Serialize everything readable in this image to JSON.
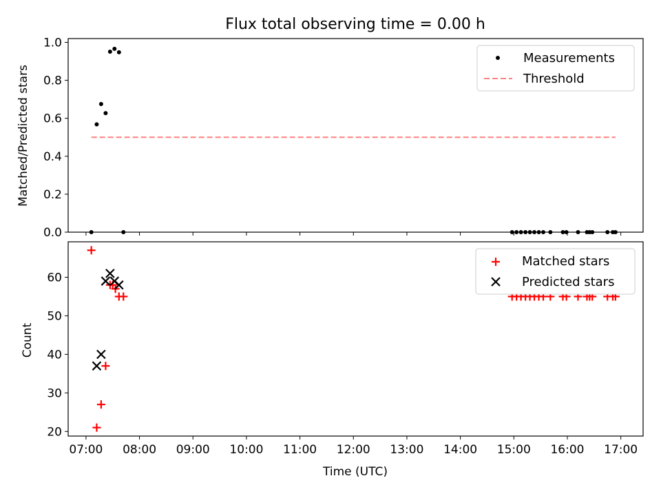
{
  "chart_data": [
    {
      "type": "scatter",
      "title": "Flux total observing time = 0.00 h",
      "xlabel": "",
      "ylabel": "Matched/Predicted stars",
      "xlim": [
        6.6667,
        17.4167
      ],
      "ylim": [
        0,
        1.02
      ],
      "yticks": [
        0.0,
        0.2,
        0.4,
        0.6,
        0.8,
        1.0
      ],
      "ytick_labels": [
        "0.0",
        "0.2",
        "0.4",
        "0.6",
        "0.8",
        "1.0"
      ],
      "legend_position": "top-right",
      "series": [
        {
          "name": "Measurements",
          "marker": "dot",
          "color": "#000000",
          "x": [
            7.1,
            7.2,
            7.283,
            7.367,
            7.45,
            7.533,
            7.617,
            7.7,
            14.967,
            15.05,
            15.133,
            15.217,
            15.3,
            15.383,
            15.467,
            15.55,
            15.683,
            15.917,
            15.983,
            16.2,
            16.367,
            16.417,
            16.467,
            16.75,
            16.85,
            16.9
          ],
          "y": [
            0.0,
            0.568,
            0.675,
            0.627,
            0.951,
            0.966,
            0.948,
            0.0,
            0,
            0,
            0,
            0,
            0,
            0,
            0,
            0,
            0,
            0,
            0,
            0,
            0,
            0,
            0,
            0,
            0,
            0
          ]
        },
        {
          "name": "Threshold",
          "style": "dashed",
          "color": "#ff8080",
          "x": [
            7.1,
            16.9
          ],
          "y": [
            0.5,
            0.5
          ]
        }
      ]
    },
    {
      "type": "scatter",
      "title": "",
      "xlabel": "Time (UTC)",
      "ylabel": "Count",
      "xlim": [
        6.6667,
        17.4167
      ],
      "ylim": [
        18.8,
        69.2
      ],
      "yticks": [
        20,
        30,
        40,
        50,
        60
      ],
      "ytick_labels": [
        "20",
        "30",
        "40",
        "50",
        "60"
      ],
      "xticks": [
        7,
        8,
        9,
        10,
        11,
        12,
        13,
        14,
        15,
        16,
        17
      ],
      "xtick_labels": [
        "07:00",
        "08:00",
        "09:00",
        "10:00",
        "11:00",
        "12:00",
        "13:00",
        "14:00",
        "15:00",
        "16:00",
        "17:00"
      ],
      "legend_position": "top-right",
      "series": [
        {
          "name": "Matched stars",
          "marker": "plus",
          "color": "#ff0000",
          "x": [
            7.1,
            7.2,
            7.283,
            7.367,
            7.45,
            7.5,
            7.55,
            7.617,
            7.7,
            14.967,
            15.05,
            15.133,
            15.217,
            15.3,
            15.383,
            15.467,
            15.55,
            15.683,
            15.917,
            15.983,
            16.2,
            16.367,
            16.417,
            16.467,
            16.75,
            16.85,
            16.9
          ],
          "y": [
            67,
            21,
            27,
            37,
            58,
            58,
            57,
            55,
            55,
            55,
            55,
            55,
            55,
            55,
            55,
            55,
            55,
            55,
            55,
            55,
            55,
            55,
            55,
            55,
            55,
            55,
            55
          ]
        },
        {
          "name": "Predicted stars",
          "marker": "x",
          "color": "#000000",
          "x": [
            7.2,
            7.283,
            7.367,
            7.45,
            7.533,
            7.617
          ],
          "y": [
            37,
            40,
            59,
            61,
            59,
            58
          ]
        }
      ]
    }
  ]
}
